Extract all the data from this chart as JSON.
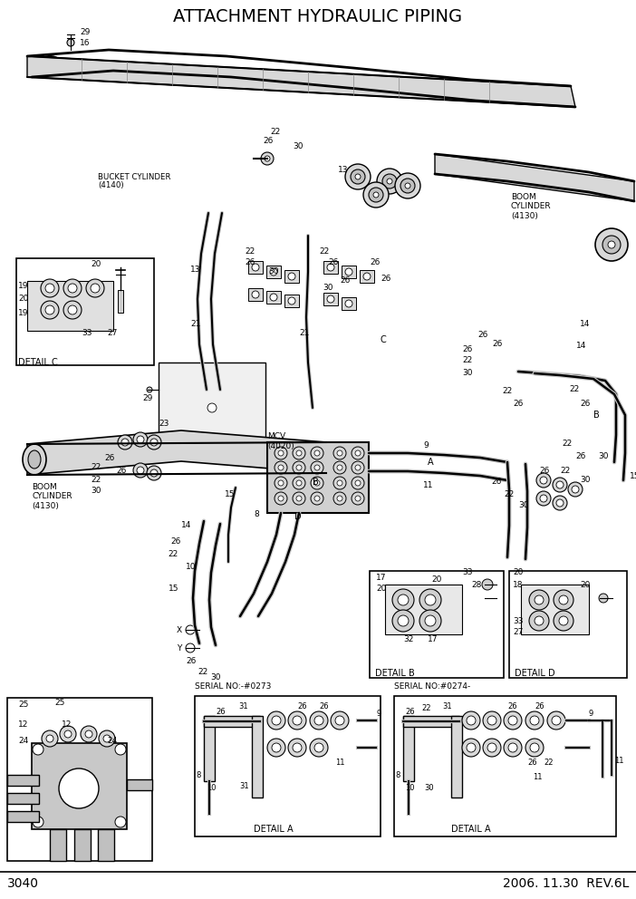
{
  "title": "ATTACHMENT HYDRAULIC PIPING",
  "page_number": "3040",
  "revision": "2006. 11.30  REV.6L",
  "bg": "#ffffff",
  "lc": "#000000",
  "title_fontsize": 14,
  "footer_fontsize": 10,
  "label_fontsize": 6.5
}
